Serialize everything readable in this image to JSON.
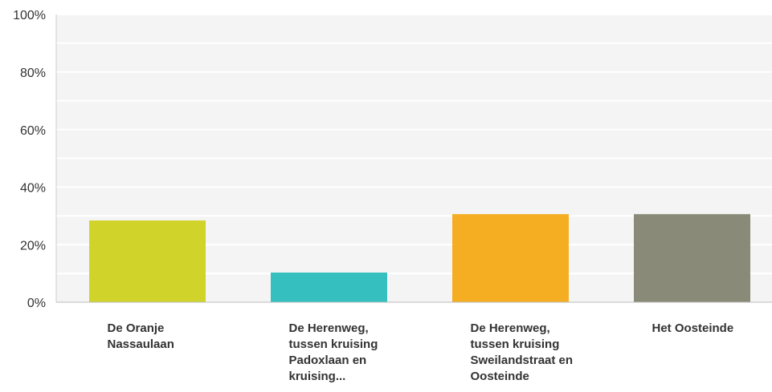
{
  "chart_data": {
    "type": "bar",
    "categories": [
      "De Oranje Nassaulaan",
      "De Herenweg, tussen kruising Padoxlaan en kruising...",
      "De Herenweg, tussen kruising Sweilandstraat en Oosteinde",
      "Het Oosteinde"
    ],
    "values": [
      28.4,
      10.3,
      30.6,
      30.6
    ],
    "colors": [
      "#d0d32a",
      "#35bfbf",
      "#f5ae22",
      "#8a8a78"
    ],
    "ylim": [
      0,
      100
    ],
    "yticks": [
      {
        "value": 0,
        "label": "0%"
      },
      {
        "value": 20,
        "label": "20%"
      },
      {
        "value": 40,
        "label": "40%"
      },
      {
        "value": 60,
        "label": "60%"
      },
      {
        "value": 80,
        "label": "80%"
      },
      {
        "value": 100,
        "label": "100%"
      }
    ],
    "minor_yticks": [
      10,
      30,
      50,
      70,
      90
    ],
    "grid": true
  }
}
